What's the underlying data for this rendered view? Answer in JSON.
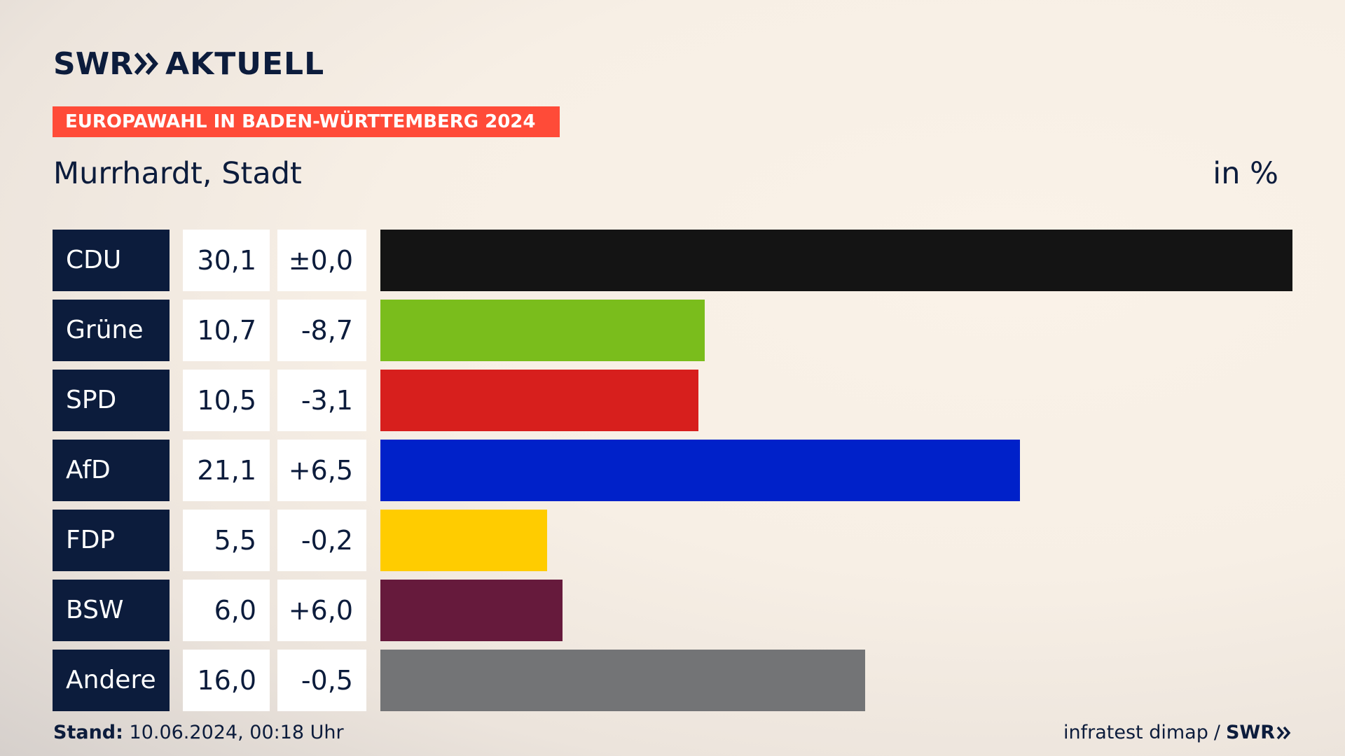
{
  "brand": {
    "swr": "SWR",
    "aktuell": "AKTUELL",
    "chevron_icon": "double-chevron-icon"
  },
  "banner": "EUROPAWAHL IN BADEN-WÜRTTEMBERG 2024",
  "subtitle": "Murrhardt, Stadt",
  "unit": "in %",
  "footer": {
    "stand_label": "Stand:",
    "stand_value": "10.06.2024, 00:18 Uhr",
    "source": "infratest dimap",
    "separator": "/",
    "source_brand": "SWR"
  },
  "chart_data": {
    "type": "bar",
    "orientation": "horizontal",
    "title": "EUROPAWAHL IN BADEN-WÜRTTEMBERG 2024",
    "subtitle": "Murrhardt, Stadt",
    "unit": "in %",
    "xlim": [
      0,
      30.1
    ],
    "grid": false,
    "categories": [
      "CDU",
      "Grüne",
      "SPD",
      "AfD",
      "FDP",
      "BSW",
      "Andere"
    ],
    "values": [
      30.1,
      10.7,
      10.5,
      21.1,
      5.5,
      6.0,
      16.0
    ],
    "value_labels": [
      "30,1",
      "10,7",
      "10,5",
      "21,1",
      "5,5",
      "6,0",
      "16,0"
    ],
    "diff_labels": [
      "±0,0",
      "-8,7",
      "-3,1",
      "+6,5",
      "-0,2",
      "+6,0",
      "-0,5"
    ],
    "colors": [
      "#141414",
      "#7abd1c",
      "#d71f1d",
      "#0021c9",
      "#ffcc00",
      "#661a3c",
      "#737476"
    ]
  }
}
